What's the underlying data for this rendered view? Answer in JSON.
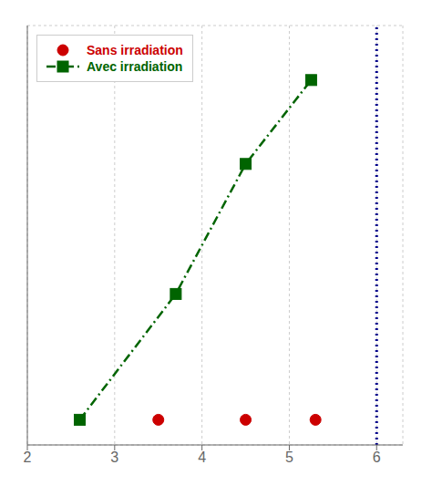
{
  "chart_data": {
    "type": "line",
    "xlim": [
      2.0,
      6.3
    ],
    "xticks": [
      2,
      3,
      4,
      5,
      6
    ],
    "ylim": [
      -50,
      950
    ],
    "yticks": [
      0,
      200,
      400,
      600,
      800
    ],
    "grid": true,
    "legend": "upper left",
    "tick_labels": "x",
    "series": [
      {
        "name": "Sans irradiation",
        "type": "scatter",
        "color": "#cc0000",
        "marker": "circle",
        "x": [
          3.5,
          4.5,
          5.3
        ],
        "values": [
          10,
          10,
          10
        ]
      },
      {
        "name": "Avec irradiation",
        "type": "line",
        "color": "#006400",
        "marker": "square",
        "line_style": "dashdot",
        "x": [
          2.6,
          3.7,
          4.5,
          5.25
        ],
        "values": [
          10,
          310,
          620,
          820
        ]
      }
    ],
    "vline": {
      "x": 6.0,
      "color": "#00008B",
      "line_style": "dotted"
    }
  }
}
